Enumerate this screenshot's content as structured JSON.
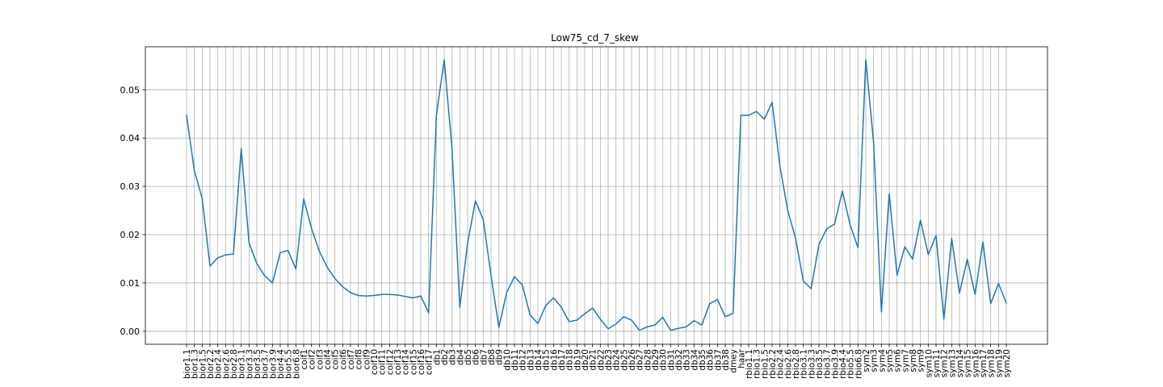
{
  "chart_data": {
    "type": "line",
    "title": "Low75_cd_7_skew",
    "xlabel": "",
    "ylabel": "",
    "grid": true,
    "ylim": [
      -0.0027,
      0.0589
    ],
    "yticks": [
      0.0,
      0.01,
      0.02,
      0.03,
      0.04,
      0.05
    ],
    "ytick_labels": [
      "0.00",
      "0.01",
      "0.02",
      "0.03",
      "0.04",
      "0.05"
    ],
    "line_color": "#1f77b4",
    "categories": [
      "bior1.1",
      "bior1.3",
      "bior1.5",
      "bior2.2",
      "bior2.4",
      "bior2.6",
      "bior2.8",
      "bior3.1",
      "bior3.3",
      "bior3.5",
      "bior3.7",
      "bior3.9",
      "bior4.4",
      "bior5.5",
      "bior6.8",
      "coif1",
      "coif2",
      "coif3",
      "coif4",
      "coif5",
      "coif6",
      "coif7",
      "coif8",
      "coif9",
      "coif10",
      "coif11",
      "coif12",
      "coif13",
      "coif14",
      "coif15",
      "coif16",
      "coif17",
      "db1",
      "db2",
      "db3",
      "db4",
      "db5",
      "db6",
      "db7",
      "db8",
      "db9",
      "db10",
      "db11",
      "db12",
      "db13",
      "db14",
      "db15",
      "db16",
      "db17",
      "db18",
      "db19",
      "db20",
      "db21",
      "db22",
      "db23",
      "db24",
      "db25",
      "db26",
      "db27",
      "db28",
      "db29",
      "db30",
      "db31",
      "db32",
      "db33",
      "db34",
      "db35",
      "db36",
      "db37",
      "db38",
      "dmey",
      "haar",
      "rbio1.1",
      "rbio1.3",
      "rbio1.5",
      "rbio2.2",
      "rbio2.4",
      "rbio2.6",
      "rbio2.8",
      "rbio3.1",
      "rbio3.3",
      "rbio3.5",
      "rbio3.7",
      "rbio3.9",
      "rbio4.4",
      "rbio5.5",
      "rbio6.8",
      "sym2",
      "sym3",
      "sym4",
      "sym5",
      "sym6",
      "sym7",
      "sym8",
      "sym9",
      "sym10",
      "sym11",
      "sym12",
      "sym13",
      "sym14",
      "sym15",
      "sym16",
      "sym17",
      "sym18",
      "sym19",
      "sym20"
    ],
    "values": [
      0.0447,
      0.0332,
      0.0275,
      0.0135,
      0.0152,
      0.0158,
      0.016,
      0.0378,
      0.0183,
      0.014,
      0.0115,
      0.01,
      0.0163,
      0.0167,
      0.0129,
      0.0274,
      0.0213,
      0.0166,
      0.0133,
      0.0109,
      0.0092,
      0.008,
      0.0074,
      0.0073,
      0.0074,
      0.0076,
      0.0076,
      0.0075,
      0.0072,
      0.0069,
      0.0073,
      0.0038,
      0.0447,
      0.0562,
      0.0378,
      0.0049,
      0.0183,
      0.027,
      0.0231,
      0.0115,
      0.0008,
      0.008,
      0.0113,
      0.0096,
      0.0034,
      0.0016,
      0.0053,
      0.0069,
      0.005,
      0.002,
      0.0023,
      0.0036,
      0.0048,
      0.0025,
      0.0005,
      0.0015,
      0.003,
      0.0023,
      0.0002,
      0.0009,
      0.0013,
      0.0029,
      0.0002,
      0.0006,
      0.0009,
      0.0022,
      0.0013,
      0.0057,
      0.0066,
      0.003,
      0.0037,
      0.0447,
      0.0447,
      0.0455,
      0.0439,
      0.0474,
      0.0342,
      0.025,
      0.0193,
      0.0104,
      0.0088,
      0.018,
      0.0212,
      0.0222,
      0.029,
      0.022,
      0.0173,
      0.0562,
      0.039,
      0.004,
      0.0285,
      0.0116,
      0.0175,
      0.0149,
      0.023,
      0.0159,
      0.0198,
      0.0025,
      0.0192,
      0.0079,
      0.0149,
      0.0076,
      0.0185,
      0.0057,
      0.0099,
      0.0058
    ]
  }
}
